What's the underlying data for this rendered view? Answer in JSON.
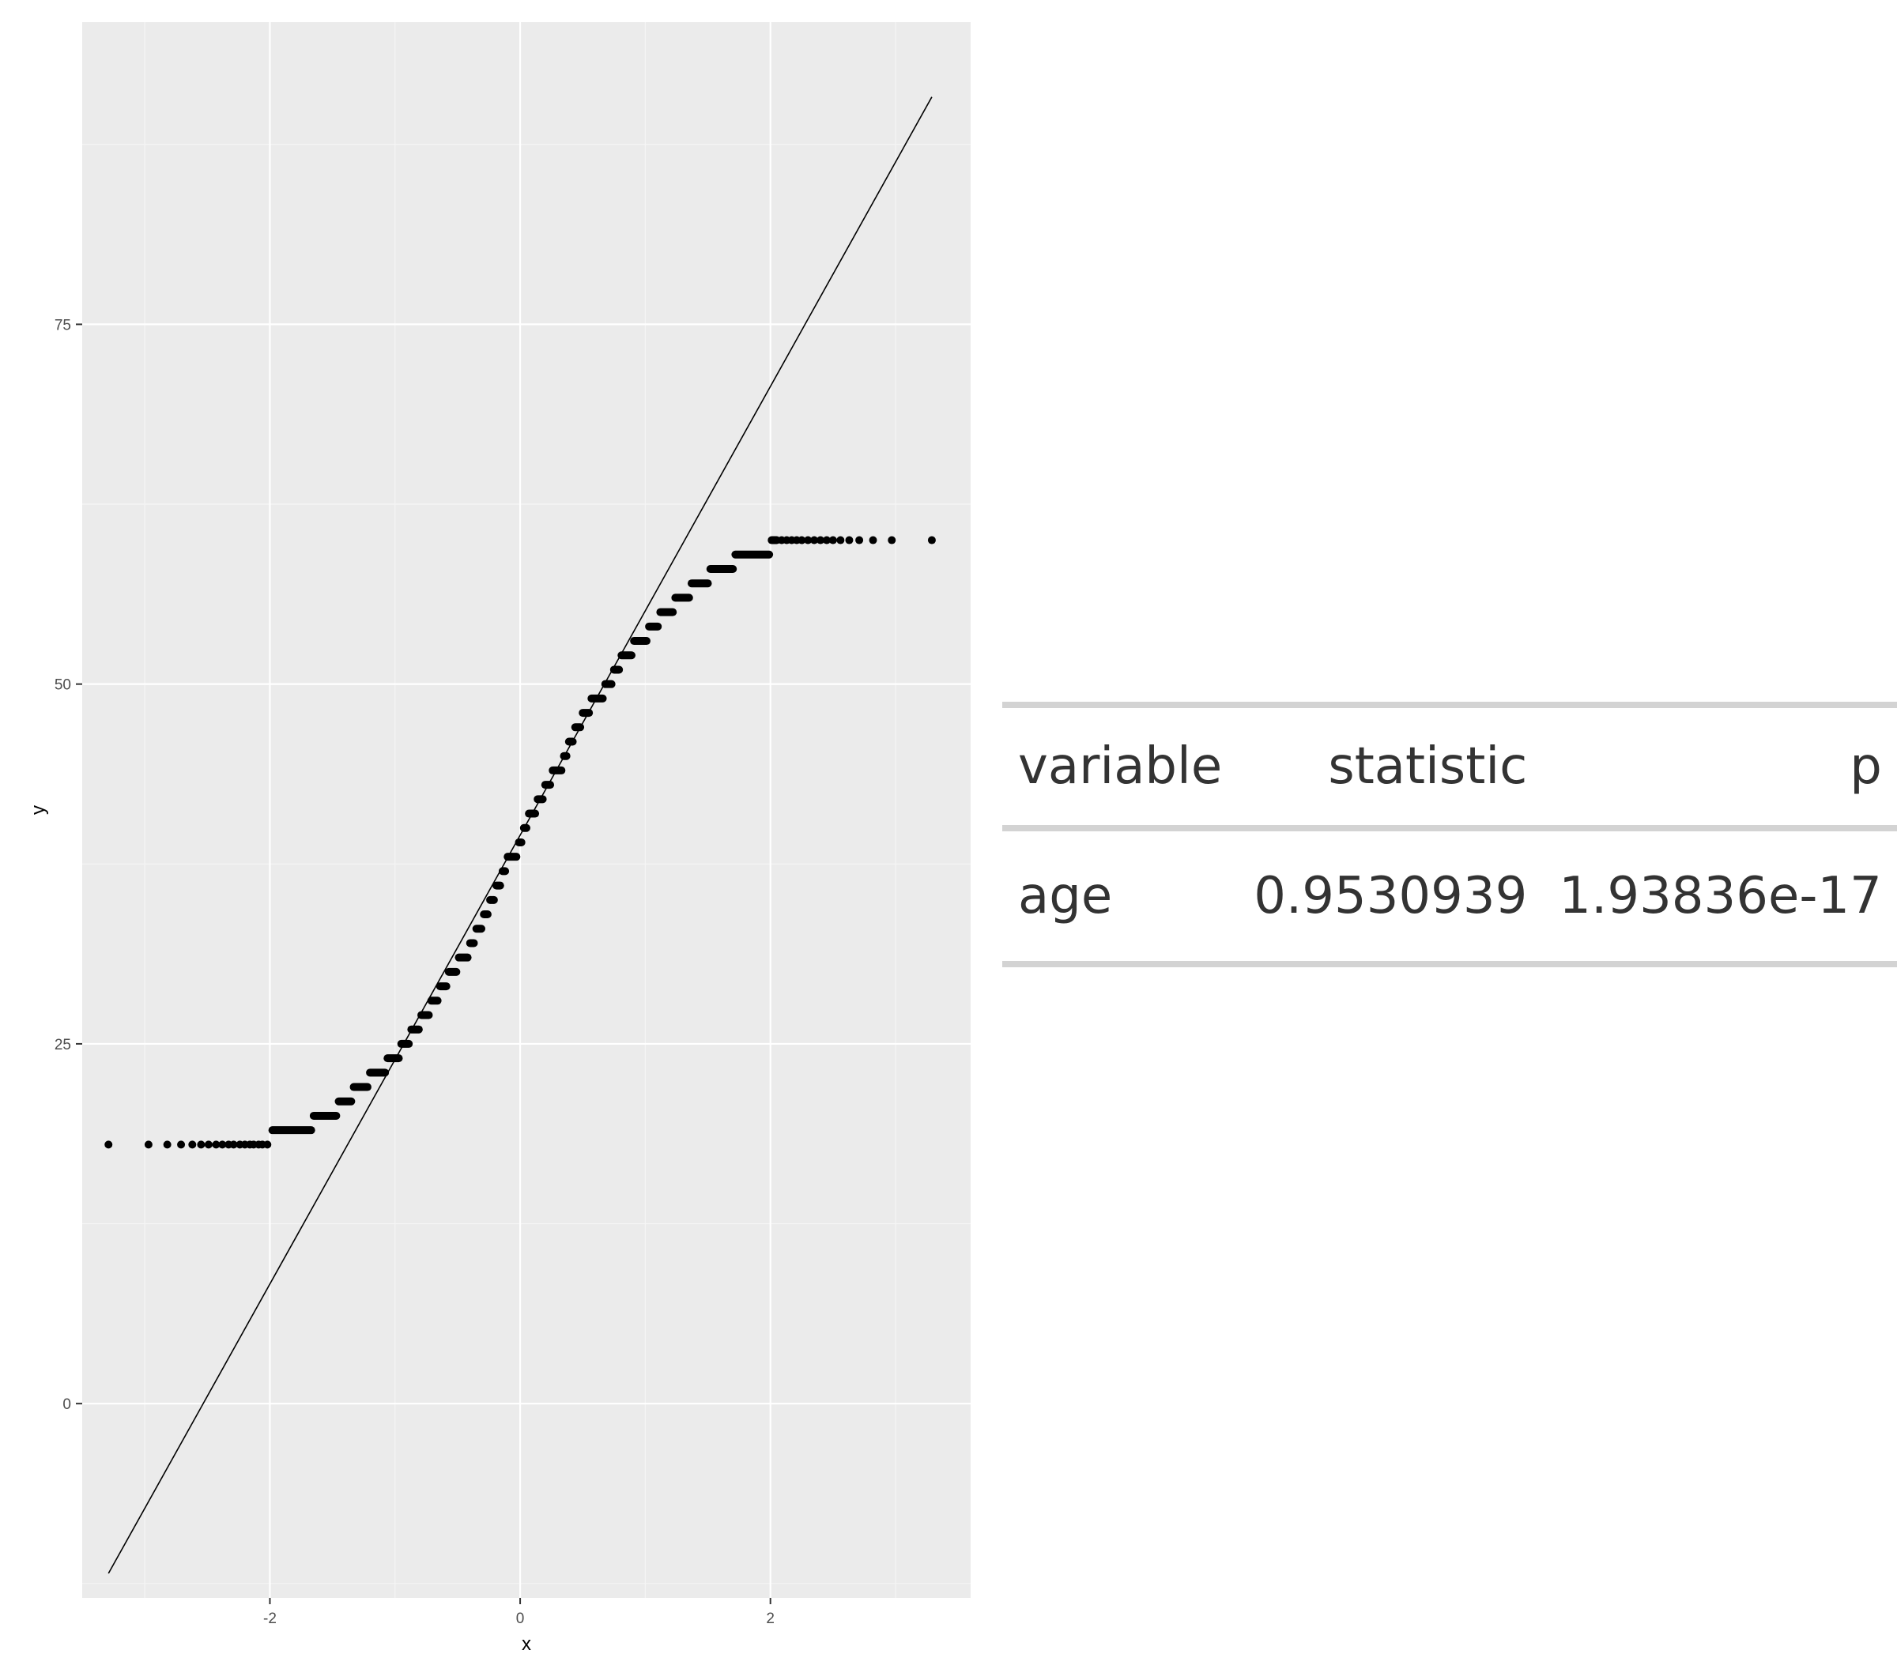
{
  "chart_data": [
    {
      "type": "scatter",
      "title": "",
      "xlabel": "x",
      "ylabel": "y",
      "xlim": [
        -3.5,
        3.6
      ],
      "ylim": [
        -13.5,
        96
      ],
      "x_ticks": [
        -2,
        0,
        2
      ],
      "y_ticks": [
        0,
        25,
        50,
        75
      ],
      "grid": true,
      "legend": "none",
      "reference_line": {
        "from": [
          -3.29,
          -11.8
        ],
        "to": [
          3.29,
          90.8
        ]
      },
      "step_points": [
        {
          "y": 18,
          "x_from": -2.02,
          "x_to": -2.02,
          "isolated_x": [
            -3.29,
            -2.97,
            -2.82,
            -2.71,
            -2.62,
            -2.55,
            -2.49,
            -2.43,
            -2.38,
            -2.33,
            -2.29,
            -2.24,
            -2.2,
            -2.16,
            -2.13,
            -2.09,
            -2.06
          ]
        },
        {
          "y": 19,
          "x_from": -1.98,
          "x_to": -1.67
        },
        {
          "y": 20,
          "x_from": -1.65,
          "x_to": -1.47
        },
        {
          "y": 21,
          "x_from": -1.45,
          "x_to": -1.35
        },
        {
          "y": 22,
          "x_from": -1.33,
          "x_to": -1.22
        },
        {
          "y": 23,
          "x_from": -1.2,
          "x_to": -1.08
        },
        {
          "y": 24,
          "x_from": -1.06,
          "x_to": -0.97
        },
        {
          "y": 25,
          "x_from": -0.95,
          "x_to": -0.89
        },
        {
          "y": 26,
          "x_from": -0.87,
          "x_to": -0.81
        },
        {
          "y": 27,
          "x_from": -0.79,
          "x_to": -0.73
        },
        {
          "y": 28,
          "x_from": -0.71,
          "x_to": -0.66
        },
        {
          "y": 29,
          "x_from": -0.64,
          "x_to": -0.59
        },
        {
          "y": 30,
          "x_from": -0.57,
          "x_to": -0.51
        },
        {
          "y": 31,
          "x_from": -0.49,
          "x_to": -0.42
        },
        {
          "y": 32,
          "x_from": -0.4,
          "x_to": -0.37
        },
        {
          "y": 33,
          "x_from": -0.35,
          "x_to": -0.31
        },
        {
          "y": 34,
          "x_from": -0.29,
          "x_to": -0.26
        },
        {
          "y": 35,
          "x_from": -0.24,
          "x_to": -0.21
        },
        {
          "y": 36,
          "x_from": -0.19,
          "x_to": -0.16
        },
        {
          "y": 37,
          "x_from": -0.14,
          "x_to": -0.12
        },
        {
          "y": 38,
          "x_from": -0.1,
          "x_to": -0.03
        },
        {
          "y": 39,
          "x_from": -0.01,
          "x_to": 0.01
        },
        {
          "y": 40,
          "x_from": 0.03,
          "x_to": 0.05
        },
        {
          "y": 41,
          "x_from": 0.07,
          "x_to": 0.12
        },
        {
          "y": 42,
          "x_from": 0.14,
          "x_to": 0.18
        },
        {
          "y": 43,
          "x_from": 0.2,
          "x_to": 0.24
        },
        {
          "y": 44,
          "x_from": 0.26,
          "x_to": 0.33
        },
        {
          "y": 45,
          "x_from": 0.35,
          "x_to": 0.37
        },
        {
          "y": 46,
          "x_from": 0.39,
          "x_to": 0.42
        },
        {
          "y": 47,
          "x_from": 0.44,
          "x_to": 0.48
        },
        {
          "y": 48,
          "x_from": 0.5,
          "x_to": 0.55
        },
        {
          "y": 49,
          "x_from": 0.57,
          "x_to": 0.66
        },
        {
          "y": 50,
          "x_from": 0.68,
          "x_to": 0.73
        },
        {
          "y": 51,
          "x_from": 0.75,
          "x_to": 0.79
        },
        {
          "y": 52,
          "x_from": 0.81,
          "x_to": 0.89
        },
        {
          "y": 53,
          "x_from": 0.91,
          "x_to": 1.01
        },
        {
          "y": 54,
          "x_from": 1.03,
          "x_to": 1.1
        },
        {
          "y": 55,
          "x_from": 1.12,
          "x_to": 1.22
        },
        {
          "y": 56,
          "x_from": 1.24,
          "x_to": 1.35
        },
        {
          "y": 57,
          "x_from": 1.37,
          "x_to": 1.5
        },
        {
          "y": 58,
          "x_from": 1.52,
          "x_to": 1.7
        },
        {
          "y": 59,
          "x_from": 1.72,
          "x_to": 1.99
        },
        {
          "y": 60,
          "x_from": 2.01,
          "x_to": 2.05,
          "isolated_x": [
            2.09,
            2.13,
            2.17,
            2.21,
            2.25,
            2.3,
            2.35,
            2.4,
            2.45,
            2.5,
            2.56,
            2.63,
            2.71,
            2.82,
            2.97,
            3.29
          ]
        }
      ]
    },
    {
      "type": "table",
      "columns": [
        {
          "key": "variable",
          "label": "variable",
          "align": "left"
        },
        {
          "key": "statistic",
          "label": "statistic",
          "align": "right"
        },
        {
          "key": "p",
          "label": "p",
          "align": "right"
        }
      ],
      "rows": [
        {
          "variable": "age",
          "statistic": "0.9530939",
          "p": "1.93836e-17"
        }
      ]
    }
  ],
  "colors": {
    "panel_background": "#ebebeb",
    "grid_major": "#ffffff",
    "grid_minor": "#f5f5f5",
    "points": "#000000",
    "line": "#000000",
    "tick_text": "#4d4d4d",
    "table_rule": "#d3d3d3",
    "table_text": "#333333"
  }
}
